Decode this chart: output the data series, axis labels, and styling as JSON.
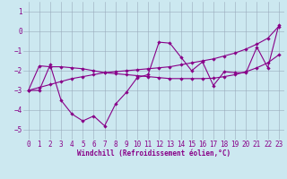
{
  "xlabel": "Windchill (Refroidissement éolien,°C)",
  "x": [
    0,
    1,
    2,
    3,
    4,
    5,
    6,
    7,
    8,
    9,
    10,
    11,
    12,
    13,
    14,
    15,
    16,
    17,
    18,
    19,
    20,
    21,
    22,
    23
  ],
  "line1": [
    -3.0,
    -3.0,
    -1.7,
    -3.5,
    -4.2,
    -4.55,
    -4.3,
    -4.8,
    -3.7,
    -3.1,
    -2.35,
    -2.2,
    -0.55,
    -0.6,
    -1.3,
    -2.0,
    -1.55,
    -2.75,
    -2.05,
    -2.1,
    -2.1,
    -0.8,
    -1.85,
    0.3
  ],
  "line2": [
    -3.0,
    -1.75,
    -1.8,
    -1.8,
    -1.85,
    -1.9,
    -2.0,
    -2.1,
    -2.15,
    -2.2,
    -2.25,
    -2.3,
    -2.35,
    -2.4,
    -2.4,
    -2.4,
    -2.4,
    -2.38,
    -2.3,
    -2.2,
    -2.05,
    -1.85,
    -1.6,
    -1.2
  ],
  "line3": [
    -3.0,
    -2.85,
    -2.7,
    -2.55,
    -2.4,
    -2.3,
    -2.2,
    -2.1,
    -2.05,
    -2.0,
    -1.95,
    -1.9,
    -1.85,
    -1.8,
    -1.7,
    -1.6,
    -1.5,
    -1.4,
    -1.25,
    -1.1,
    -0.9,
    -0.65,
    -0.35,
    0.25
  ],
  "bg_color": "#cce8f0",
  "grid_color": "#99aabb",
  "line_color": "#880088",
  "ylim": [
    -5.5,
    1.5
  ],
  "xlim": [
    -0.5,
    23.5
  ],
  "yticks": [
    1,
    0,
    -1,
    -2,
    -3,
    -4,
    -5
  ],
  "xticks": [
    0,
    1,
    2,
    3,
    4,
    5,
    6,
    7,
    8,
    9,
    10,
    11,
    12,
    13,
    14,
    15,
    16,
    17,
    18,
    19,
    20,
    21,
    22,
    23
  ],
  "xlabel_fontsize": 5.5,
  "tick_fontsize": 5.5,
  "lw": 0.8,
  "ms": 2.2
}
